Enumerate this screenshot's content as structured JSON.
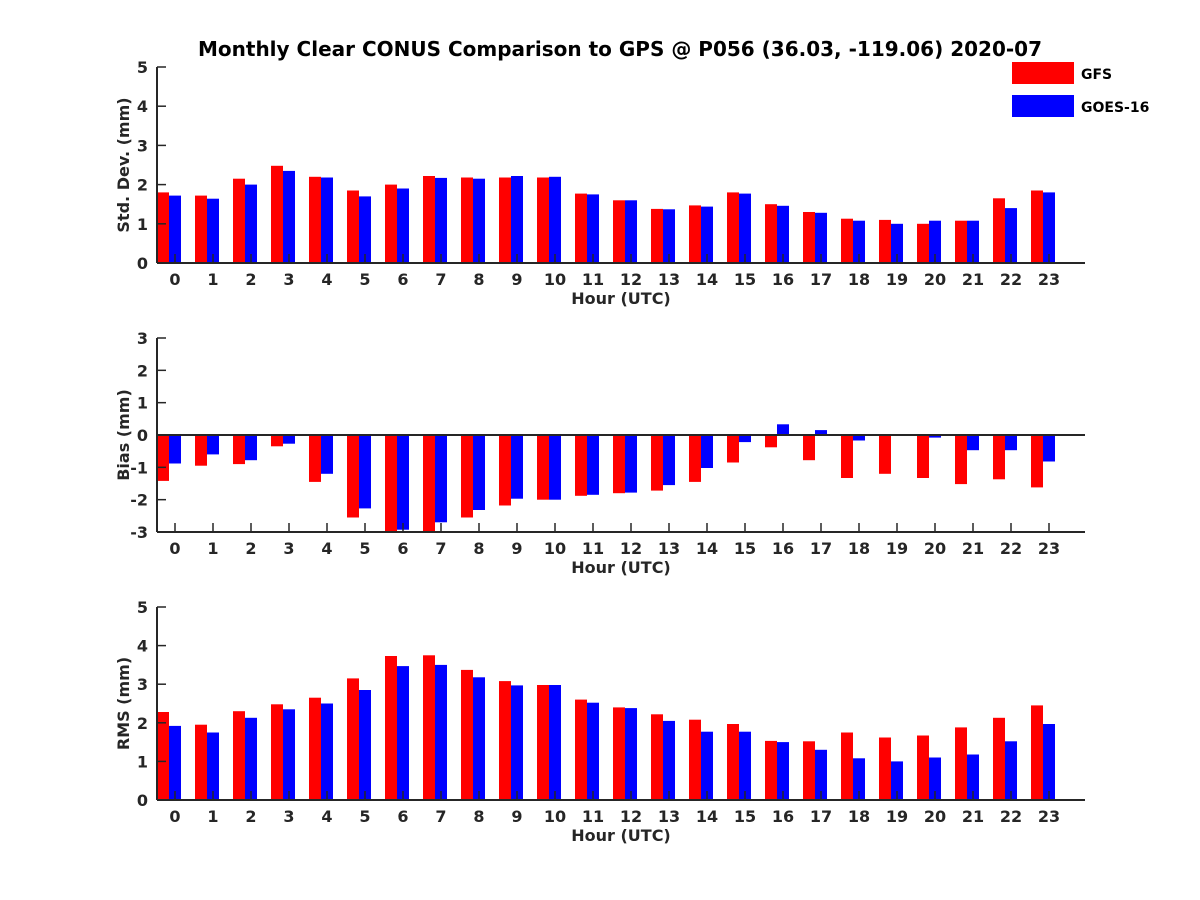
{
  "title": "Monthly Clear CONUS Comparison to GPS @ P056 (36.03, -119.06) 2020-07",
  "colors": {
    "GFS": "#ff0000",
    "GOES-16": "#0000ff",
    "axis": "#262626"
  },
  "legend": [
    {
      "name": "GFS",
      "color": "#ff0000"
    },
    {
      "name": "GOES-16",
      "color": "#0000ff"
    }
  ],
  "chart_data": [
    {
      "type": "bar",
      "xlabel": "Hour (UTC)",
      "ylabel": "Std. Dev. (mm)",
      "ylim": [
        0,
        5
      ],
      "yticks": [
        "0",
        "1",
        "2",
        "3",
        "4",
        "5"
      ],
      "categories": [
        "0",
        "1",
        "2",
        "3",
        "4",
        "5",
        "6",
        "7",
        "8",
        "9",
        "10",
        "11",
        "12",
        "13",
        "14",
        "15",
        "16",
        "17",
        "18",
        "19",
        "20",
        "21",
        "22",
        "23"
      ],
      "series": [
        {
          "name": "GFS",
          "values": [
            1.8,
            1.72,
            2.15,
            2.48,
            2.2,
            1.85,
            2.0,
            2.22,
            2.18,
            2.18,
            2.18,
            1.77,
            1.6,
            1.38,
            1.47,
            1.8,
            1.5,
            1.3,
            1.13,
            1.1,
            1.0,
            1.08,
            1.65,
            1.85
          ]
        },
        {
          "name": "GOES-16",
          "values": [
            1.72,
            1.64,
            2.0,
            2.35,
            2.18,
            1.7,
            1.9,
            2.17,
            2.15,
            2.22,
            2.2,
            1.75,
            1.6,
            1.37,
            1.44,
            1.77,
            1.46,
            1.28,
            1.08,
            1.0,
            1.08,
            1.08,
            1.4,
            1.8
          ]
        }
      ]
    },
    {
      "type": "bar",
      "xlabel": "Hour (UTC)",
      "ylabel": "Bias (mm)",
      "ylim": [
        -3,
        3
      ],
      "yticks": [
        "-3",
        "-2",
        "-1",
        "0",
        "1",
        "2",
        "3"
      ],
      "categories": [
        "0",
        "1",
        "2",
        "3",
        "4",
        "5",
        "6",
        "7",
        "8",
        "9",
        "10",
        "11",
        "12",
        "13",
        "14",
        "15",
        "16",
        "17",
        "18",
        "19",
        "20",
        "21",
        "22",
        "23"
      ],
      "series": [
        {
          "name": "GFS",
          "values": [
            -1.42,
            -0.95,
            -0.9,
            -0.35,
            -1.45,
            -2.55,
            -3.0,
            -3.0,
            -2.55,
            -2.18,
            -2.0,
            -1.88,
            -1.8,
            -1.72,
            -1.45,
            -0.85,
            -0.38,
            -0.78,
            -1.33,
            -1.2,
            -1.33,
            -1.52,
            -1.37,
            -1.62
          ]
        },
        {
          "name": "GOES-16",
          "values": [
            -0.88,
            -0.6,
            -0.78,
            -0.27,
            -1.2,
            -2.27,
            -2.93,
            -2.7,
            -2.32,
            -1.97,
            -2.0,
            -1.85,
            -1.78,
            -1.55,
            -1.02,
            -0.22,
            0.33,
            0.15,
            -0.17,
            -0.02,
            -0.08,
            -0.47,
            -0.47,
            -0.82
          ]
        }
      ]
    },
    {
      "type": "bar",
      "xlabel": "Hour (UTC)",
      "ylabel": "RMS (mm)",
      "ylim": [
        0,
        5
      ],
      "yticks": [
        "0",
        "1",
        "2",
        "3",
        "4",
        "5"
      ],
      "categories": [
        "0",
        "1",
        "2",
        "3",
        "4",
        "5",
        "6",
        "7",
        "8",
        "9",
        "10",
        "11",
        "12",
        "13",
        "14",
        "15",
        "16",
        "17",
        "18",
        "19",
        "20",
        "21",
        "22",
        "23"
      ],
      "series": [
        {
          "name": "GFS",
          "values": [
            2.28,
            1.95,
            2.3,
            2.48,
            2.65,
            3.15,
            3.73,
            3.75,
            3.37,
            3.08,
            2.98,
            2.6,
            2.4,
            2.22,
            2.08,
            1.97,
            1.53,
            1.52,
            1.75,
            1.62,
            1.67,
            1.88,
            2.13,
            2.45
          ]
        },
        {
          "name": "GOES-16",
          "values": [
            1.92,
            1.75,
            2.13,
            2.35,
            2.5,
            2.85,
            3.47,
            3.5,
            3.18,
            2.97,
            2.98,
            2.52,
            2.38,
            2.05,
            1.77,
            1.77,
            1.5,
            1.3,
            1.08,
            1.0,
            1.1,
            1.18,
            1.52,
            1.97
          ]
        }
      ]
    }
  ]
}
